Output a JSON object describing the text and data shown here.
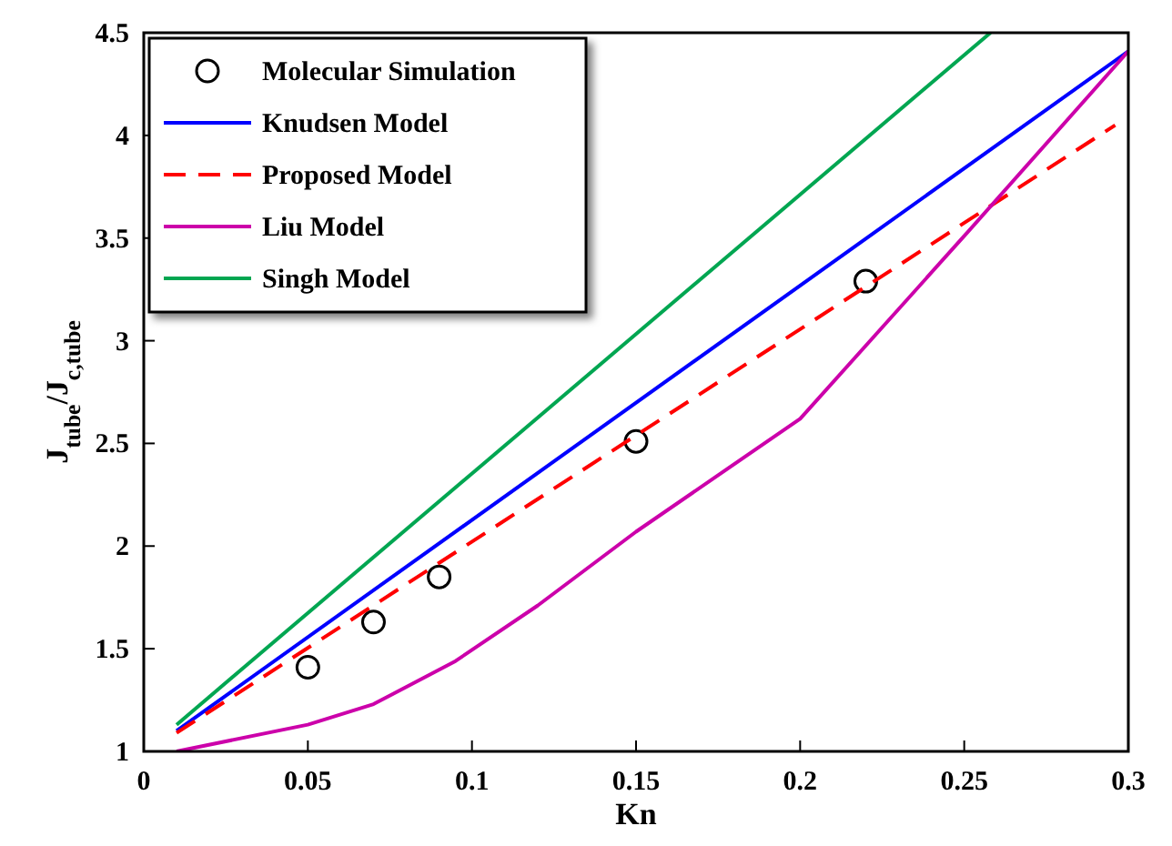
{
  "chart_data": {
    "type": "line",
    "xlabel": "Kn",
    "ylabel": "J$_{tube}$/J$_{c,tube}$",
    "xlim": [
      0,
      0.3
    ],
    "xticks": [
      0,
      0.05,
      0.1,
      0.15,
      0.2,
      0.25,
      0.3
    ],
    "ylim": [
      1,
      4.5
    ],
    "yticks": [
      1,
      1.5,
      2,
      2.5,
      3,
      3.5,
      4,
      4.5
    ],
    "grid": false,
    "legend": "top left",
    "series": [
      {
        "name": "Molecular Simulation",
        "type": "scatter",
        "marker": "circle",
        "color": "#000000",
        "x": [
          0.05,
          0.07,
          0.09,
          0.15,
          0.22
        ],
        "values": [
          1.41,
          1.63,
          1.85,
          2.51,
          3.29
        ]
      },
      {
        "name": "Knudsen Model",
        "color": "#0000ff",
        "line_style": "solid",
        "x": [
          0.01,
          0.3
        ],
        "values": [
          1.1,
          4.41
        ]
      },
      {
        "name": "Proposed Model",
        "color": "#ff0000",
        "line_style": "dashed",
        "x": [
          0.01,
          0.296
        ],
        "values": [
          1.09,
          4.05
        ]
      },
      {
        "name": "Liu Model",
        "color": "#cc00aa",
        "line_style": "solid",
        "x": [
          0.01,
          0.05,
          0.07,
          0.095,
          0.12,
          0.15,
          0.2,
          0.25,
          0.3
        ],
        "values": [
          1.0,
          1.13,
          1.23,
          1.44,
          1.71,
          2.07,
          2.62,
          3.51,
          4.41
        ]
      },
      {
        "name": "Singh Model",
        "color": "#00a651",
        "line_style": "solid",
        "x": [
          0.01,
          0.258
        ],
        "values": [
          1.13,
          4.5
        ]
      }
    ]
  }
}
